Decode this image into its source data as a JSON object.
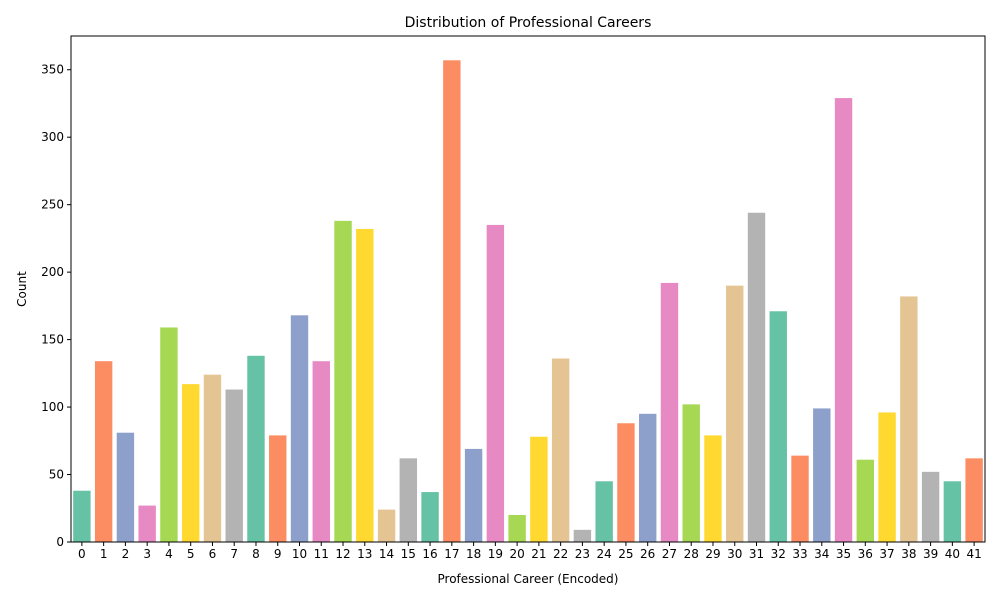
{
  "chart_data": {
    "type": "bar",
    "title": "Distribution of Professional Careers",
    "xlabel": "Professional Career (Encoded)",
    "ylabel": "Count",
    "categories": [
      "0",
      "1",
      "2",
      "3",
      "4",
      "5",
      "6",
      "7",
      "8",
      "9",
      "10",
      "11",
      "12",
      "13",
      "14",
      "15",
      "16",
      "17",
      "18",
      "19",
      "20",
      "21",
      "22",
      "23",
      "24",
      "25",
      "26",
      "27",
      "28",
      "29",
      "30",
      "31",
      "32",
      "33",
      "34",
      "35",
      "36",
      "37",
      "38",
      "39",
      "40",
      "41"
    ],
    "values": [
      38,
      134,
      81,
      27,
      159,
      117,
      124,
      113,
      138,
      79,
      168,
      134,
      238,
      232,
      24,
      62,
      37,
      357,
      69,
      235,
      20,
      78,
      136,
      9,
      45,
      88,
      95,
      192,
      102,
      79,
      190,
      244,
      171,
      64,
      99,
      329,
      61,
      96,
      182,
      52,
      45,
      62
    ],
    "ylim": [
      0,
      375
    ],
    "yticks": [
      0,
      50,
      100,
      150,
      200,
      250,
      300,
      350
    ],
    "palette": [
      "#66c2a5",
      "#fc8d62",
      "#8da0cb",
      "#e78ac3",
      "#a6d854",
      "#ffd92f",
      "#e5c494",
      "#b3b3b3"
    ],
    "grid": false,
    "legend": "none"
  }
}
